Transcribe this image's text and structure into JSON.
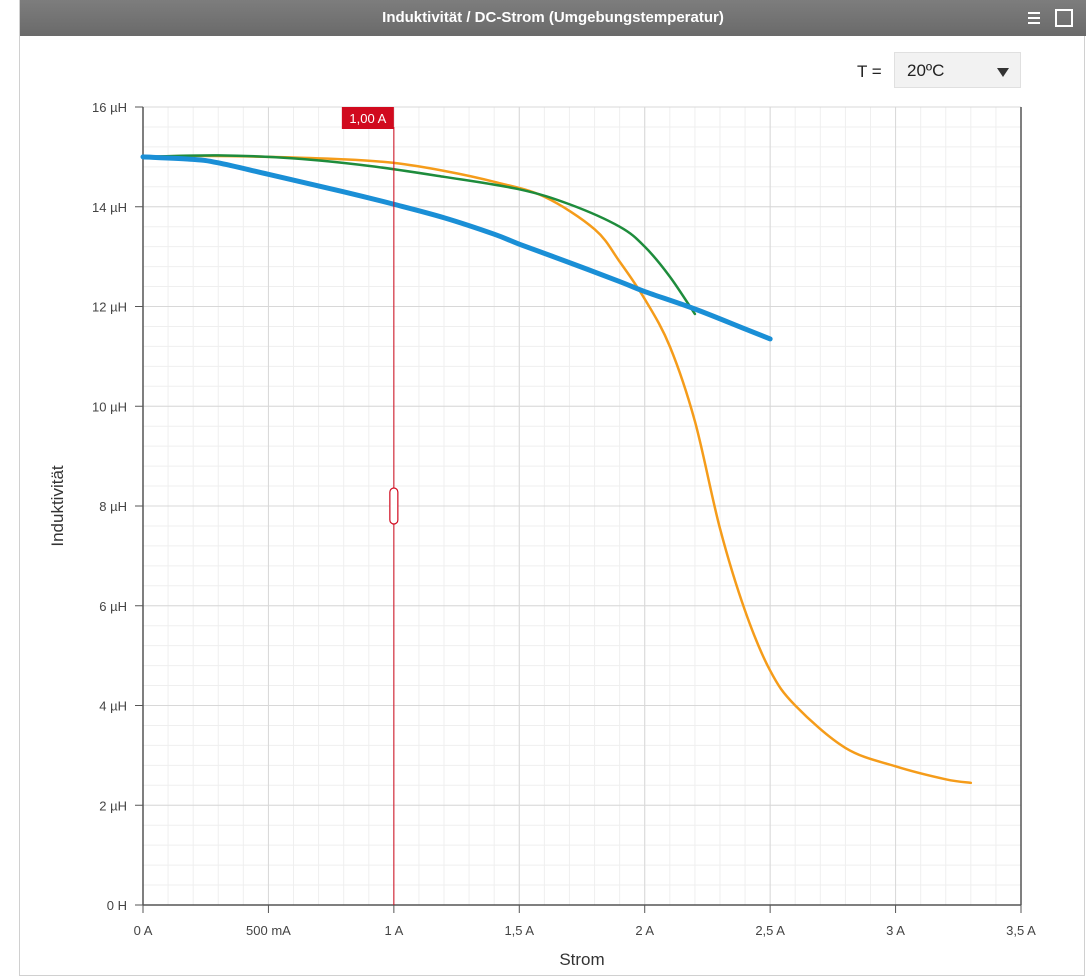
{
  "window": {
    "title": "Induktivität / DC-Strom (Umgebungstemperatur)",
    "menu_icon": "hamburger-menu-icon",
    "maximize_icon": "maximize-icon"
  },
  "temperature": {
    "label": "T =",
    "value": "20ºC"
  },
  "cursor": {
    "value_label": "1,00 A",
    "x": 1.0,
    "color": "#d10a1e"
  },
  "chart_data": {
    "type": "line",
    "xlabel": "Strom",
    "ylabel": "Induktivität",
    "xlim": [
      0,
      3.5
    ],
    "ylim": [
      0,
      16
    ],
    "x_ticks": [
      {
        "value": 0,
        "label": "0 A"
      },
      {
        "value": 0.5,
        "label": "500 mA"
      },
      {
        "value": 1,
        "label": "1 A"
      },
      {
        "value": 1.5,
        "label": "1,5 A"
      },
      {
        "value": 2,
        "label": "2 A"
      },
      {
        "value": 2.5,
        "label": "2,5 A"
      },
      {
        "value": 3,
        "label": "3 A"
      },
      {
        "value": 3.5,
        "label": "3,5 A"
      }
    ],
    "y_ticks": [
      {
        "value": 0,
        "label": "0 H"
      },
      {
        "value": 2,
        "label": "2 µH"
      },
      {
        "value": 4,
        "label": "4 µH"
      },
      {
        "value": 6,
        "label": "6 µH"
      },
      {
        "value": 8,
        "label": "8 µH"
      },
      {
        "value": 10,
        "label": "10 µH"
      },
      {
        "value": 12,
        "label": "12 µH"
      },
      {
        "value": 14,
        "label": "14 µH"
      },
      {
        "value": 16,
        "label": "16 µH"
      }
    ],
    "grid": true,
    "series": [
      {
        "color": "#f59c1a",
        "width": 2.5,
        "x": [
          0,
          0.2,
          0.5,
          0.8,
          1.0,
          1.2,
          1.4,
          1.6,
          1.8,
          1.9,
          2.0,
          2.1,
          2.2,
          2.3,
          2.4,
          2.5,
          2.6,
          2.8,
          3.0,
          3.2,
          3.3
        ],
        "y": [
          15.0,
          15.02,
          15.0,
          14.95,
          14.88,
          14.72,
          14.5,
          14.2,
          13.55,
          12.9,
          12.15,
          11.2,
          9.7,
          7.55,
          5.9,
          4.7,
          4.0,
          3.15,
          2.78,
          2.52,
          2.45
        ]
      },
      {
        "color": "#1e8c3c",
        "width": 2.5,
        "x": [
          0,
          0.3,
          0.6,
          0.9,
          1.2,
          1.5,
          1.7,
          1.9,
          2.0,
          2.1,
          2.2
        ],
        "y": [
          15.0,
          15.03,
          14.97,
          14.82,
          14.6,
          14.35,
          14.05,
          13.6,
          13.2,
          12.6,
          11.85
        ]
      },
      {
        "color": "#1a8fd6",
        "width": 5,
        "x": [
          0,
          0.2,
          0.3,
          0.5,
          0.8,
          1.0,
          1.2,
          1.4,
          1.5,
          1.7,
          1.9,
          2.0,
          2.2,
          2.4,
          2.5
        ],
        "y": [
          15.0,
          14.95,
          14.88,
          14.65,
          14.3,
          14.05,
          13.78,
          13.45,
          13.25,
          12.88,
          12.5,
          12.3,
          11.95,
          11.55,
          11.35
        ]
      }
    ]
  }
}
